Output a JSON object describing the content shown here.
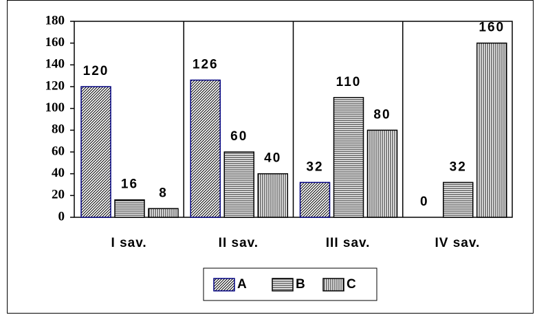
{
  "chart_data": {
    "type": "bar",
    "categories": [
      "I sav.",
      "II sav.",
      "III sav.",
      "IV sav."
    ],
    "series": [
      {
        "name": "A",
        "color": "#000080",
        "values": [
          120,
          126,
          32,
          0
        ]
      },
      {
        "name": "B",
        "color": "#000000",
        "values": [
          16,
          60,
          110,
          32
        ]
      },
      {
        "name": "C",
        "color": "#000000",
        "values": [
          8,
          40,
          80,
          160
        ]
      }
    ],
    "ylim": [
      0,
      180
    ],
    "yticks": [
      0,
      20,
      40,
      60,
      80,
      100,
      120,
      140,
      160,
      180
    ],
    "grid": false,
    "legend": "bottom"
  }
}
